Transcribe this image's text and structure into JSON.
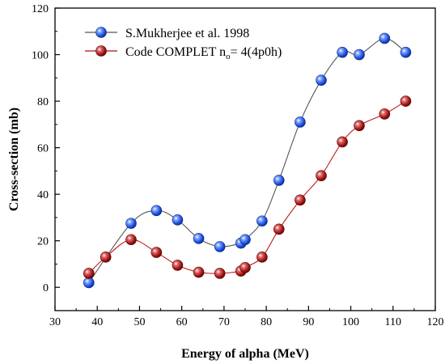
{
  "chart_data": {
    "type": "line",
    "xlabel": "Energy of alpha (MeV)",
    "ylabel": "Cross-section (mb)",
    "xlim": [
      30,
      120
    ],
    "ylim": [
      -10,
      120
    ],
    "xticks": [
      30,
      40,
      50,
      60,
      70,
      80,
      90,
      100,
      110,
      120
    ],
    "yticks": [
      0,
      20,
      40,
      60,
      80,
      100,
      120
    ],
    "grid": false,
    "legend_position": "top-left",
    "series": [
      {
        "name": "S.Mukherjee et al. 1998",
        "color": "#1f4fe0",
        "x": [
          38,
          48,
          54,
          59,
          64,
          69,
          74,
          75,
          79,
          83,
          88,
          93,
          98,
          102,
          108,
          113
        ],
        "y": [
          2,
          27.5,
          33,
          29,
          21,
          17.5,
          19,
          20.5,
          28.5,
          46,
          71,
          89,
          101,
          100,
          107,
          101
        ]
      },
      {
        "name_main": "Code COMPLET n",
        "name_sub": "o",
        "name_tail": "= 4(4p0h)",
        "color": "#b01010",
        "x": [
          38,
          42,
          48,
          54,
          59,
          64,
          69,
          74,
          75,
          79,
          83,
          88,
          93,
          98,
          102,
          108,
          113
        ],
        "y": [
          6,
          13,
          20.5,
          15,
          9.5,
          6.5,
          6,
          7,
          8.5,
          13,
          25,
          37.5,
          48,
          62.5,
          69.5,
          74.5,
          80
        ]
      }
    ]
  }
}
